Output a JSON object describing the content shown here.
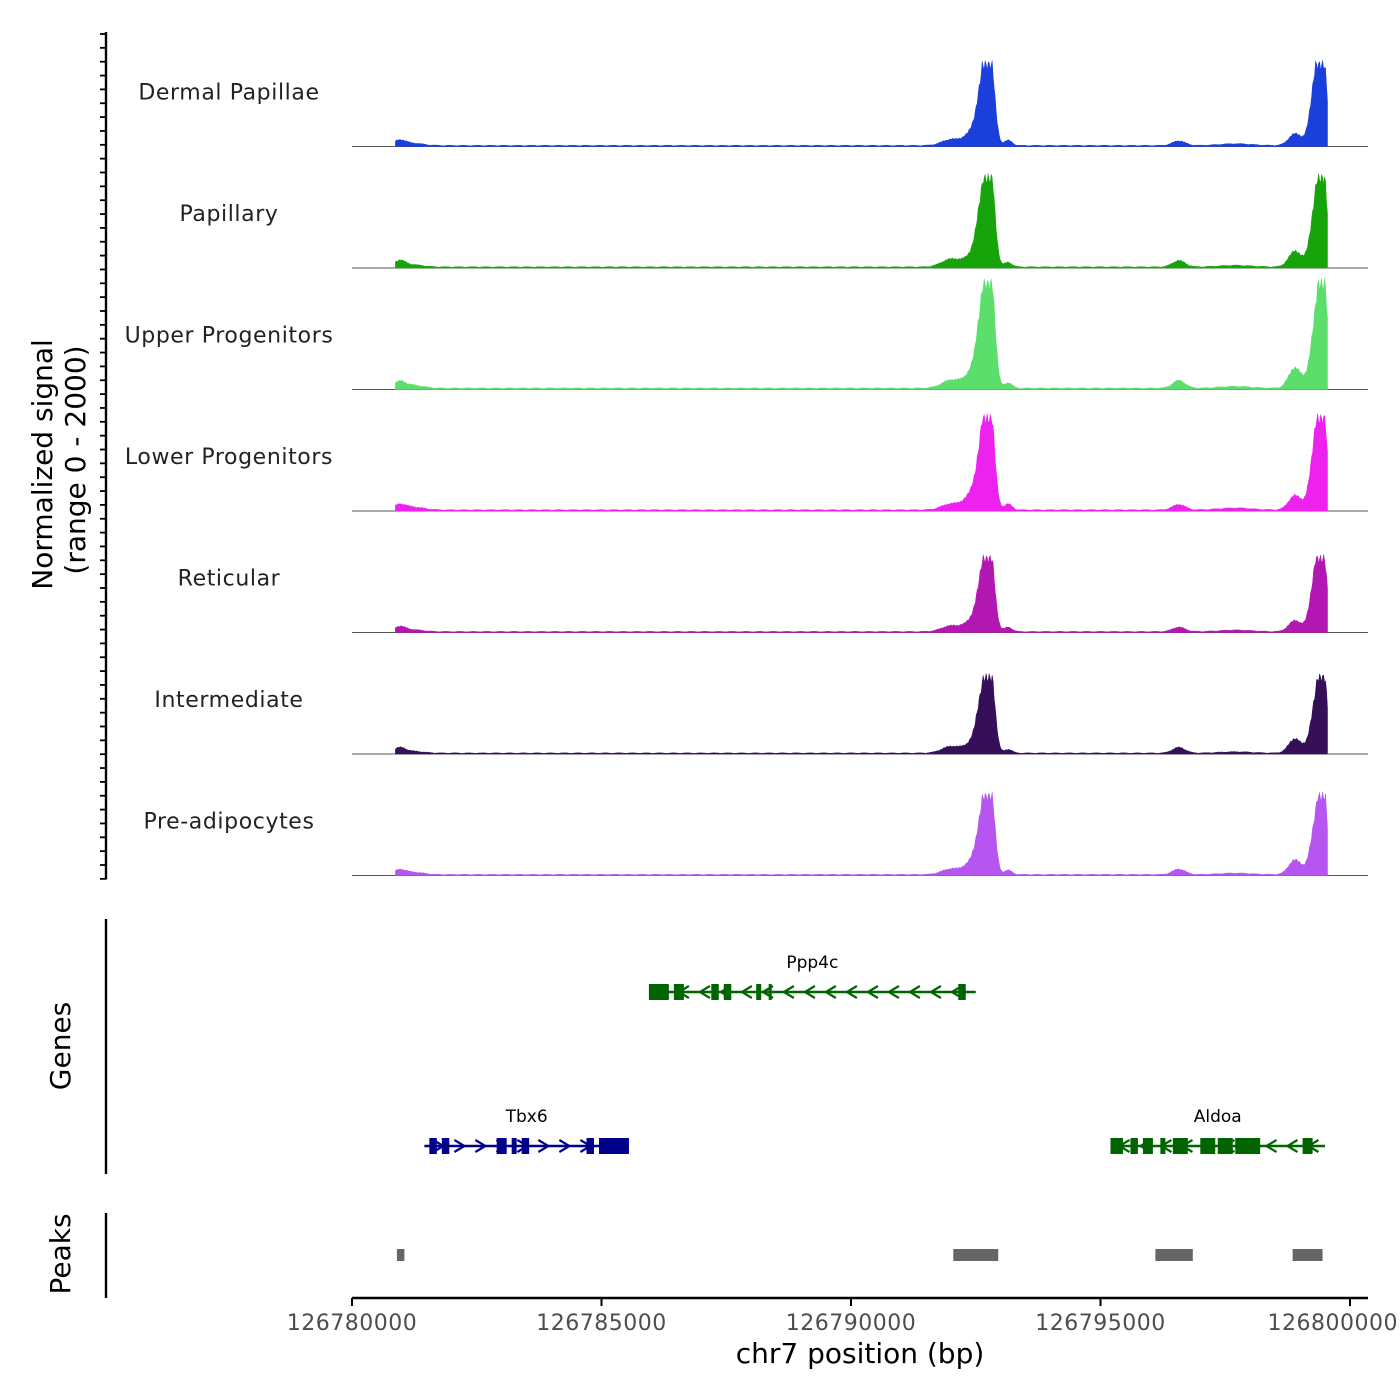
{
  "chart_data": {
    "type": "area",
    "title": "",
    "chromosome": "chr7",
    "region": [
      126780000,
      126800500
    ],
    "ylabel_line1": "Normalized signal",
    "ylabel_line2": "(range 0 - 2000)",
    "ylim": [
      0,
      2000
    ],
    "xlabel": "chr7 position (bp)",
    "x_ticks": [
      126780000,
      126785000,
      126790000,
      126795000,
      126800000
    ],
    "x_tick_labels": [
      "126780000",
      "126785000",
      "126790000",
      "126795000",
      "126800000"
    ],
    "peak_shapes": [
      {
        "center": 126780950,
        "width": 160,
        "rel": 0.06
      },
      {
        "center": 126781200,
        "width": 300,
        "rel": 0.03
      },
      {
        "center": 126792000,
        "width": 260,
        "rel": 0.08
      },
      {
        "center": 126792500,
        "width": 260,
        "rel": 0.2
      },
      {
        "center": 126792600,
        "width": 140,
        "rel": 0.35
      },
      {
        "center": 126792730,
        "width": 140,
        "rel": 0.8
      },
      {
        "center": 126792820,
        "width": 110,
        "rel": 0.55
      },
      {
        "center": 126793150,
        "width": 110,
        "rel": 0.06
      },
      {
        "center": 126796570,
        "width": 180,
        "rel": 0.07
      },
      {
        "center": 126797700,
        "width": 450,
        "rel": 0.02
      },
      {
        "center": 126798900,
        "width": 180,
        "rel": 0.18
      },
      {
        "center": 126799350,
        "width": 170,
        "rel": 0.9
      },
      {
        "center": 126799470,
        "width": 110,
        "rel": 0.7
      }
    ],
    "series": [
      {
        "name": "Dermal Papillae",
        "color": "#1a3fdb",
        "max": 1550
      },
      {
        "name": "Papillary",
        "color": "#17a40a",
        "max": 1700
      },
      {
        "name": "Upper Progenitors",
        "color": "#5cde6c",
        "max": 2000
      },
      {
        "name": "Lower Progenitors",
        "color": "#ee22ee",
        "max": 1750
      },
      {
        "name": "Reticular",
        "color": "#b217b2",
        "max": 1400
      },
      {
        "name": "Intermediate",
        "color": "#351058",
        "max": 1450
      },
      {
        "name": "Pre-adipocytes",
        "color": "#b755f0",
        "max": 1500
      }
    ],
    "genes_label": "Genes",
    "genes": [
      {
        "name": "Ppp4c",
        "start": 126785950,
        "end": 126792500,
        "strand": "-",
        "color": "#006400",
        "row": 0,
        "exons": [
          [
            126785950,
            126786350
          ],
          [
            126786450,
            126786650
          ],
          [
            126787200,
            126787350
          ],
          [
            126787450,
            126787600
          ],
          [
            126788100,
            126788200
          ],
          [
            126788350,
            126788400
          ],
          [
            126792150,
            126792300
          ]
        ]
      },
      {
        "name": "Tbx6",
        "start": 126781450,
        "end": 126785550,
        "strand": "+",
        "color": "#00008b",
        "row": 1,
        "exons": [
          [
            126781550,
            126781700
          ],
          [
            126781800,
            126781950
          ],
          [
            126782900,
            126783100
          ],
          [
            126783200,
            126783300
          ],
          [
            126783400,
            126783550
          ],
          [
            126784700,
            126784850
          ],
          [
            126784950,
            126785550
          ]
        ]
      },
      {
        "name": "Aldoa",
        "start": 126795200,
        "end": 126799500,
        "strand": "-",
        "color": "#006400",
        "row": 1,
        "exons": [
          [
            126795200,
            126795450
          ],
          [
            126795600,
            126795750
          ],
          [
            126795850,
            126796050
          ],
          [
            126796200,
            126796300
          ],
          [
            126796450,
            126796750
          ],
          [
            126797000,
            126797300
          ],
          [
            126797350,
            126797650
          ],
          [
            126797700,
            126798200
          ],
          [
            126799050,
            126799250
          ]
        ]
      }
    ],
    "peaks_label": "Peaks",
    "peaks": [
      [
        126780900,
        126781050
      ],
      [
        126792050,
        126792950
      ],
      [
        126796100,
        126796850
      ],
      [
        126798850,
        126799450
      ]
    ]
  }
}
